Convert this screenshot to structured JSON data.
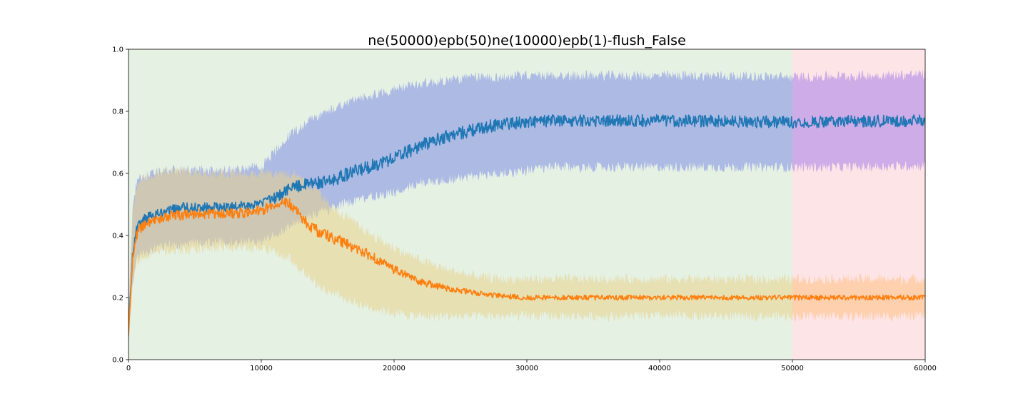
{
  "chart_data": {
    "type": "line",
    "title": "ne(50000)epb(50)ne(10000)epb(1)-flush_False",
    "xlabel": "",
    "ylabel": "",
    "xlim": [
      0,
      60000
    ],
    "ylim": [
      0,
      1.0
    ],
    "x_ticks": [
      0,
      10000,
      20000,
      30000,
      40000,
      50000,
      60000
    ],
    "x_tick_labels": [
      "0",
      "10000",
      "20000",
      "30000",
      "40000",
      "50000",
      "60000"
    ],
    "y_ticks": [
      0.0,
      0.2,
      0.4,
      0.6,
      0.8,
      1.0
    ],
    "y_tick_labels": [
      "0.0",
      "0.2",
      "0.4",
      "0.6",
      "0.8",
      "1.0"
    ],
    "grid": false,
    "legend": false,
    "background_regions": [
      {
        "x_start": 0,
        "x_end": 50000,
        "color": "#e5f1e3"
      },
      {
        "x_start": 50000,
        "x_end": 60000,
        "color": "#fde4e6"
      }
    ],
    "series": [
      {
        "color": "#1f77b4",
        "band_color": "#7f8ce6",
        "band_color_phase2": "#a57ee8",
        "x": [
          0,
          300,
          600,
          1000,
          2000,
          3000,
          4000,
          6000,
          8000,
          10000,
          11000,
          12000,
          13000,
          14000,
          15000,
          16000,
          18000,
          20000,
          22000,
          24000,
          26000,
          28000,
          30000,
          32000,
          35000,
          40000,
          45000,
          50000,
          55000,
          60000
        ],
        "mean": [
          0.09,
          0.33,
          0.42,
          0.45,
          0.47,
          0.48,
          0.49,
          0.49,
          0.495,
          0.5,
          0.52,
          0.55,
          0.56,
          0.57,
          0.57,
          0.59,
          0.62,
          0.65,
          0.69,
          0.72,
          0.74,
          0.76,
          0.765,
          0.77,
          0.77,
          0.77,
          0.768,
          0.765,
          0.768,
          0.77
        ],
        "band_low": [
          0.06,
          0.25,
          0.32,
          0.34,
          0.36,
          0.37,
          0.37,
          0.38,
          0.38,
          0.38,
          0.4,
          0.43,
          0.45,
          0.47,
          0.48,
          0.5,
          0.52,
          0.54,
          0.57,
          0.58,
          0.59,
          0.6,
          0.61,
          0.62,
          0.62,
          0.62,
          0.62,
          0.62,
          0.62,
          0.625
        ],
        "band_high": [
          0.14,
          0.48,
          0.57,
          0.59,
          0.6,
          0.61,
          0.61,
          0.61,
          0.61,
          0.62,
          0.67,
          0.72,
          0.75,
          0.78,
          0.8,
          0.82,
          0.85,
          0.87,
          0.89,
          0.9,
          0.91,
          0.91,
          0.915,
          0.915,
          0.915,
          0.915,
          0.915,
          0.91,
          0.915,
          0.92
        ]
      },
      {
        "color": "#ff7f0e",
        "band_color": "#e8d28c",
        "band_color_phase2": "#ffbf80",
        "x": [
          0,
          300,
          600,
          1000,
          2000,
          3000,
          4000,
          6000,
          8000,
          10000,
          11000,
          12000,
          13000,
          14000,
          15000,
          16000,
          18000,
          20000,
          22000,
          24000,
          26000,
          28000,
          30000,
          32000,
          35000,
          40000,
          45000,
          50000,
          55000,
          60000
        ],
        "mean": [
          0.08,
          0.32,
          0.4,
          0.43,
          0.45,
          0.46,
          0.465,
          0.47,
          0.47,
          0.48,
          0.5,
          0.51,
          0.46,
          0.42,
          0.4,
          0.38,
          0.34,
          0.29,
          0.25,
          0.23,
          0.215,
          0.205,
          0.2,
          0.2,
          0.2,
          0.2,
          0.2,
          0.2,
          0.2,
          0.2
        ],
        "band_low": [
          0.05,
          0.24,
          0.31,
          0.33,
          0.34,
          0.35,
          0.35,
          0.36,
          0.36,
          0.36,
          0.35,
          0.33,
          0.29,
          0.25,
          0.22,
          0.2,
          0.17,
          0.15,
          0.14,
          0.14,
          0.14,
          0.14,
          0.14,
          0.14,
          0.14,
          0.14,
          0.14,
          0.14,
          0.14,
          0.14
        ],
        "band_high": [
          0.13,
          0.47,
          0.56,
          0.58,
          0.6,
          0.61,
          0.61,
          0.6,
          0.6,
          0.6,
          0.6,
          0.6,
          0.59,
          0.55,
          0.51,
          0.47,
          0.41,
          0.36,
          0.32,
          0.29,
          0.27,
          0.26,
          0.26,
          0.26,
          0.26,
          0.26,
          0.26,
          0.26,
          0.26,
          0.26
        ]
      }
    ]
  }
}
